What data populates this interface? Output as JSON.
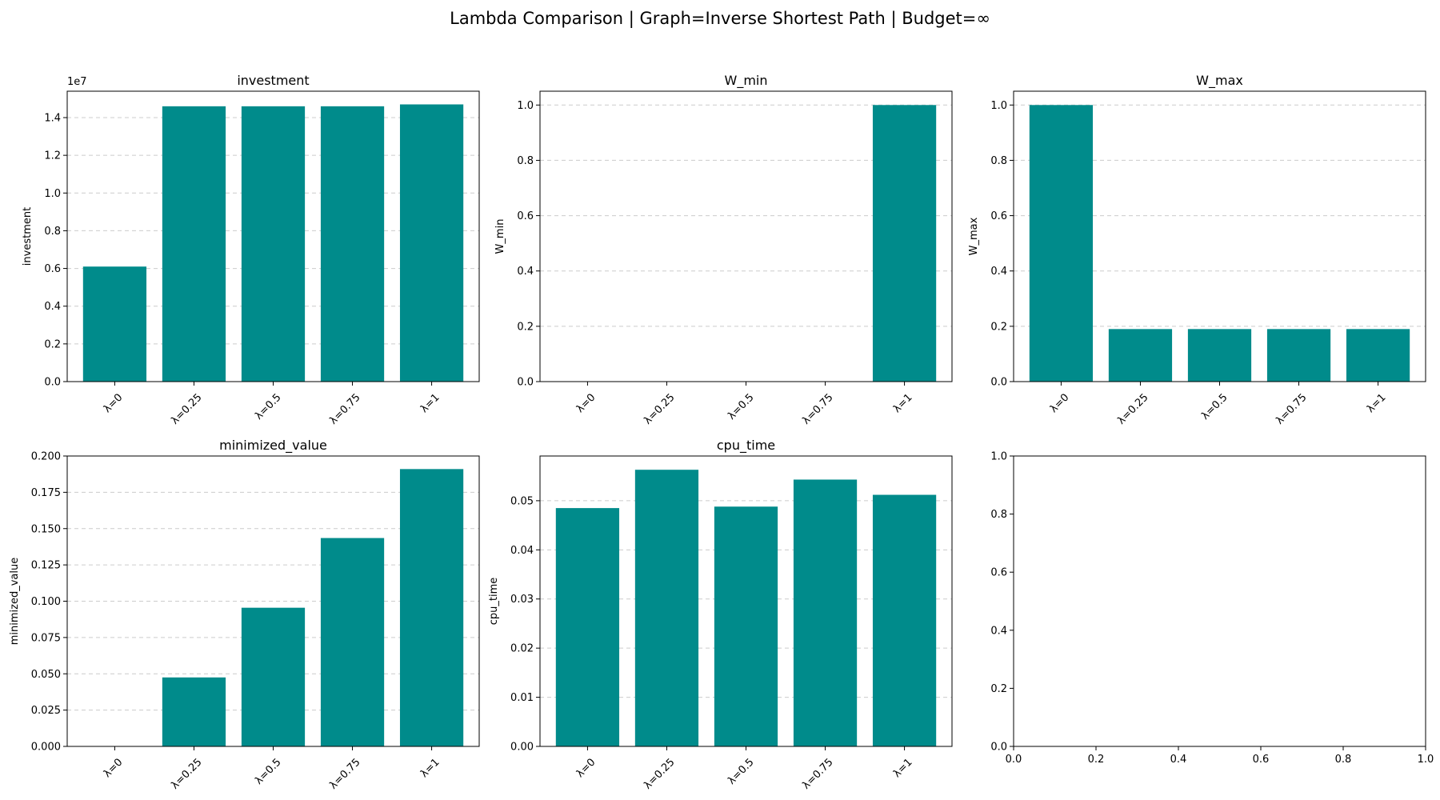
{
  "figure": {
    "suptitle": "Lambda Comparison | Graph=Inverse Shortest Path | Budget=∞"
  },
  "colors": {
    "bar": "#008b8b",
    "grid": "#cccccc",
    "axis": "#000000"
  },
  "chart_data": [
    {
      "type": "bar",
      "title": "investment",
      "xlabel": "",
      "ylabel": "investment",
      "offset_label": "1e7",
      "categories": [
        "λ=0",
        "λ=0.25",
        "λ=0.5",
        "λ=0.75",
        "λ=1"
      ],
      "values": [
        6100000,
        14600000,
        14600000,
        14600000,
        14700000
      ],
      "ylim": [
        0,
        15400000
      ],
      "yticks": [
        0,
        2000000,
        4000000,
        6000000,
        8000000,
        10000000,
        12000000,
        14000000
      ],
      "ytick_labels": [
        "0.0",
        "0.2",
        "0.4",
        "0.6",
        "0.8",
        "1.0",
        "1.2",
        "1.4"
      ],
      "grid": true
    },
    {
      "type": "bar",
      "title": "W_min",
      "xlabel": "",
      "ylabel": "W_min",
      "categories": [
        "λ=0",
        "λ=0.25",
        "λ=0.5",
        "λ=0.75",
        "λ=1"
      ],
      "values": [
        0,
        0,
        0,
        0,
        1.0
      ],
      "ylim": [
        0,
        1.05
      ],
      "yticks": [
        0,
        0.2,
        0.4,
        0.6,
        0.8,
        1.0
      ],
      "ytick_labels": [
        "0.0",
        "0.2",
        "0.4",
        "0.6",
        "0.8",
        "1.0"
      ],
      "grid": true
    },
    {
      "type": "bar",
      "title": "W_max",
      "xlabel": "",
      "ylabel": "W_max",
      "categories": [
        "λ=0",
        "λ=0.25",
        "λ=0.5",
        "λ=0.75",
        "λ=1"
      ],
      "values": [
        1.0,
        0.19,
        0.19,
        0.19,
        0.19
      ],
      "ylim": [
        0,
        1.05
      ],
      "yticks": [
        0,
        0.2,
        0.4,
        0.6,
        0.8,
        1.0
      ],
      "ytick_labels": [
        "0.0",
        "0.2",
        "0.4",
        "0.6",
        "0.8",
        "1.0"
      ],
      "grid": true
    },
    {
      "type": "bar",
      "title": "minimized_value",
      "xlabel": "",
      "ylabel": "minimized_value",
      "categories": [
        "λ=0",
        "λ=0.25",
        "λ=0.5",
        "λ=0.75",
        "λ=1"
      ],
      "values": [
        0,
        0.0475,
        0.0955,
        0.1435,
        0.191
      ],
      "ylim": [
        0,
        0.2
      ],
      "yticks": [
        0,
        0.025,
        0.05,
        0.075,
        0.1,
        0.125,
        0.15,
        0.175,
        0.2
      ],
      "ytick_labels": [
        "0.000",
        "0.025",
        "0.050",
        "0.075",
        "0.100",
        "0.125",
        "0.150",
        "0.175",
        "0.200"
      ],
      "grid": true
    },
    {
      "type": "bar",
      "title": "cpu_time",
      "xlabel": "",
      "ylabel": "cpu_time",
      "categories": [
        "λ=0",
        "λ=0.25",
        "λ=0.5",
        "λ=0.75",
        "λ=1"
      ],
      "values": [
        0.0485,
        0.0563,
        0.0488,
        0.0543,
        0.0512
      ],
      "ylim": [
        0,
        0.0591
      ],
      "yticks": [
        0,
        0.01,
        0.02,
        0.03,
        0.04,
        0.05
      ],
      "ytick_labels": [
        "0.00",
        "0.01",
        "0.02",
        "0.03",
        "0.04",
        "0.05"
      ],
      "grid": true
    },
    {
      "type": "empty",
      "title": "",
      "xlim": [
        0,
        1
      ],
      "ylim": [
        0,
        1
      ],
      "xticks": [
        0,
        0.2,
        0.4,
        0.6,
        0.8,
        1.0
      ],
      "xtick_labels": [
        "0.0",
        "0.2",
        "0.4",
        "0.6",
        "0.8",
        "1.0"
      ],
      "yticks": [
        0,
        0.2,
        0.4,
        0.6,
        0.8,
        1.0
      ],
      "ytick_labels": [
        "0.0",
        "0.2",
        "0.4",
        "0.6",
        "0.8",
        "1.0"
      ],
      "grid": false
    }
  ]
}
